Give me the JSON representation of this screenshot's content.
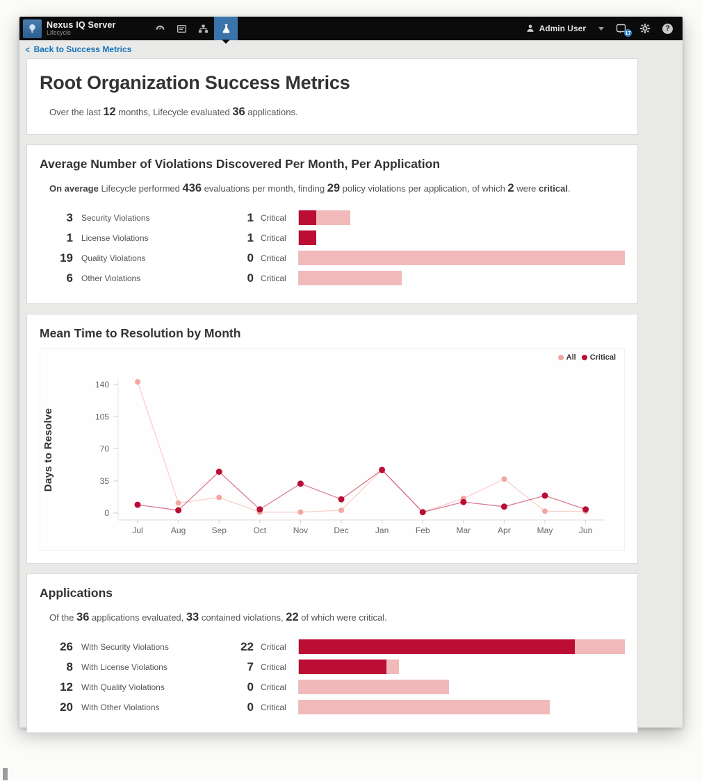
{
  "navbar": {
    "product_name": "Nexus IQ Server",
    "product_edition": "Lifecycle",
    "user_name": "Admin User",
    "notification_count": "17",
    "icons": [
      "lightbulb-logo-icon",
      "dashboard-gauge-icon",
      "reports-icon",
      "organizations-icon",
      "lifecycle-flask-icon",
      "user-icon",
      "notifications-icon",
      "settings-gear-icon",
      "help-icon",
      "caret-down-icon"
    ],
    "active_tab_color": "#3b74aa"
  },
  "breadcrumb": {
    "back_label": "Back to Success Metrics",
    "chevron": "<"
  },
  "header": {
    "title": "Root Organization Success Metrics",
    "intro": {
      "p1": "Over the last ",
      "n1": 12,
      "p2": " months, Lifecycle evaluated ",
      "n2": 36,
      "p3": " applications."
    }
  },
  "violations_section": {
    "title": "Average Number of Violations Discovered Per Month, Per Application",
    "summary": {
      "b1": "On average",
      "p1": " Lifecycle performed ",
      "n1": 436,
      "p2": " evaluations per month, finding ",
      "n2": 29,
      "p3": " policy violations per application, of which ",
      "n3": 2,
      "p4": " were ",
      "b2": "critical",
      "p5": "."
    },
    "rows": [
      {
        "total": 3,
        "label": "Security Violations",
        "critical": 1,
        "critical_label": "Critical"
      },
      {
        "total": 1,
        "label": "License Violations",
        "critical": 1,
        "critical_label": "Critical"
      },
      {
        "total": 19,
        "label": "Quality Violations",
        "critical": 0,
        "critical_label": "Critical"
      },
      {
        "total": 6,
        "label": "Other Violations",
        "critical": 0,
        "critical_label": "Critical"
      }
    ]
  },
  "resolution_section": {
    "title": "Mean Time to Resolution by Month",
    "legend": [
      {
        "label": "All",
        "color": "#f0a8a1"
      },
      {
        "label": "Critical",
        "color": "#bb0d35"
      }
    ]
  },
  "applications_section": {
    "title": "Applications",
    "summary": {
      "p1": "Of the ",
      "n1": 36,
      "p2": " applications evaluated, ",
      "n2": 33,
      "p3": " contained violations, ",
      "n3": 22,
      "p4": " of which were critical."
    },
    "rows": [
      {
        "total": 26,
        "label": "With Security Violations",
        "critical": 22,
        "critical_label": "Critical"
      },
      {
        "total": 8,
        "label": "With License Violations",
        "critical": 7,
        "critical_label": "Critical"
      },
      {
        "total": 12,
        "label": "With Quality Violations",
        "critical": 0,
        "critical_label": "Critical"
      },
      {
        "total": 20,
        "label": "With Other Violations",
        "critical": 0,
        "critical_label": "Critical"
      }
    ]
  },
  "chart_data": [
    {
      "type": "bar",
      "title": "Average Number of Violations Discovered Per Month, Per Application",
      "orientation": "horizontal",
      "categories": [
        "Security Violations",
        "License Violations",
        "Quality Violations",
        "Other Violations"
      ],
      "series": [
        {
          "name": "Critical",
          "values": [
            1,
            1,
            0,
            0
          ],
          "color": "#bc0d35"
        },
        {
          "name": "Non-critical",
          "values": [
            2,
            0,
            19,
            6
          ],
          "color": "#f2b9ba"
        }
      ],
      "totals": [
        3,
        1,
        19,
        6
      ]
    },
    {
      "type": "line",
      "title": "Mean Time to Resolution by Month",
      "x": [
        "Jul",
        "Aug",
        "Sep",
        "Oct",
        "Nov",
        "Dec",
        "Jan",
        "Feb",
        "Mar",
        "Apr",
        "May",
        "Jun"
      ],
      "series": [
        {
          "name": "All",
          "values": [
            143,
            11,
            17,
            1,
            1,
            3,
            47,
            1,
            16,
            37,
            2,
            2
          ]
        },
        {
          "name": "Critical",
          "values": [
            9,
            3,
            45,
            4,
            32,
            15,
            47,
            1,
            12,
            7,
            19,
            4
          ]
        }
      ],
      "ylabel": "Days to Resolve",
      "xlabel": "",
      "yticks": [
        0,
        35,
        70,
        105,
        140
      ],
      "ylim": [
        0,
        150
      ],
      "grid": false,
      "legend_position": "top-right"
    },
    {
      "type": "bar",
      "title": "Applications",
      "orientation": "horizontal",
      "categories": [
        "With Security Violations",
        "With License Violations",
        "With Quality Violations",
        "With Other Violations"
      ],
      "series": [
        {
          "name": "Critical",
          "values": [
            22,
            7,
            0,
            0
          ],
          "color": "#bc0d35"
        },
        {
          "name": "Non-critical",
          "values": [
            4,
            1,
            12,
            20
          ],
          "color": "#f2b9ba"
        }
      ],
      "totals": [
        26,
        8,
        12,
        20
      ]
    }
  ],
  "colors": {
    "critical": "#bc0d35",
    "all_light": "#f2b9ba",
    "link_blue": "#1373bd",
    "nav_black": "#0b0b0b"
  }
}
